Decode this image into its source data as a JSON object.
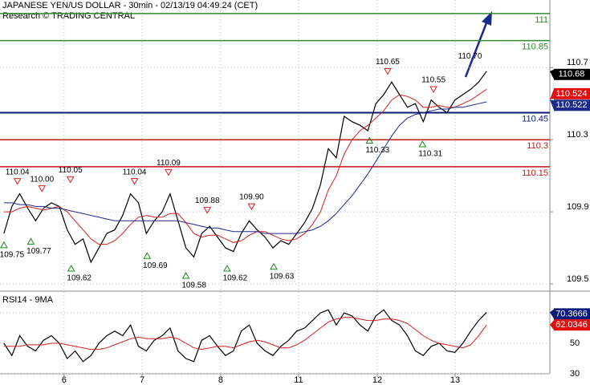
{
  "chart_data": [
    {
      "type": "line",
      "title": "JAPANESE YEN/US DOLLAR - 30min - 02/13/19 04:49:24 (CET)",
      "subtitle": "Research © TRADING CENTRAL",
      "x": [
        0,
        1,
        2,
        3,
        4,
        5,
        6,
        7,
        8,
        9,
        10,
        11,
        12,
        13,
        14,
        15,
        16,
        17,
        18,
        19,
        20,
        21,
        22,
        23,
        24,
        25,
        26,
        27,
        28,
        29,
        30,
        31,
        32,
        33,
        34,
        35,
        36,
        37,
        38,
        39,
        40,
        41,
        42,
        43,
        44,
        45,
        46,
        47,
        48,
        49,
        50,
        51,
        52,
        53,
        54,
        55,
        56,
        57,
        58,
        59,
        60,
        61
      ],
      "xlim": [
        -0.5,
        69
      ],
      "ylim": [
        109.46,
        111.075
      ],
      "yticks": [
        109.5,
        109.9,
        110.3,
        110.7
      ],
      "series": [
        {
          "color": "#000000",
          "values": [
            109.78,
            109.93,
            110.0,
            109.92,
            109.85,
            109.92,
            109.95,
            109.93,
            109.8,
            109.72,
            109.75,
            109.62,
            109.7,
            109.78,
            109.8,
            109.88,
            110.0,
            109.95,
            109.78,
            109.85,
            109.9,
            110.0,
            109.85,
            109.7,
            109.65,
            109.78,
            109.82,
            109.76,
            109.7,
            109.68,
            109.78,
            109.85,
            109.8,
            109.76,
            109.7,
            109.74,
            109.72,
            109.78,
            109.84,
            109.92,
            110.05,
            110.25,
            110.2,
            110.43,
            110.4,
            110.38,
            110.35,
            110.5,
            110.55,
            110.62,
            110.55,
            110.48,
            110.5,
            110.4,
            110.52,
            110.48,
            110.45,
            110.52,
            110.55,
            110.58,
            110.62,
            110.68
          ]
        },
        {
          "color": "#d42020",
          "values": [
            109.9,
            109.9,
            109.92,
            109.93,
            109.92,
            109.91,
            109.92,
            109.93,
            109.9,
            109.85,
            109.8,
            109.75,
            109.72,
            109.72,
            109.74,
            109.78,
            109.83,
            109.87,
            109.88,
            109.87,
            109.87,
            109.89,
            109.89,
            109.84,
            109.78,
            109.76,
            109.77,
            109.77,
            109.75,
            109.73,
            109.74,
            109.77,
            109.79,
            109.79,
            109.77,
            109.75,
            109.74,
            109.75,
            109.78,
            109.83,
            109.9,
            110.02,
            110.1,
            110.22,
            110.3,
            110.35,
            110.38,
            110.42,
            110.46,
            110.52,
            110.55,
            110.54,
            110.52,
            110.48,
            110.48,
            110.49,
            110.48,
            110.48,
            110.5,
            110.52,
            110.55,
            110.58
          ]
        },
        {
          "color": "#1c2a8c",
          "values": [
            109.95,
            109.95,
            109.94,
            109.94,
            109.93,
            109.93,
            109.92,
            109.92,
            109.91,
            109.9,
            109.89,
            109.88,
            109.87,
            109.86,
            109.85,
            109.85,
            109.85,
            109.85,
            109.85,
            109.85,
            109.85,
            109.85,
            109.85,
            109.84,
            109.83,
            109.82,
            109.81,
            109.81,
            109.8,
            109.79,
            109.79,
            109.79,
            109.79,
            109.78,
            109.78,
            109.78,
            109.78,
            109.78,
            109.79,
            109.8,
            109.82,
            109.85,
            109.89,
            109.94,
            109.99,
            110.05,
            110.11,
            110.18,
            110.25,
            110.32,
            110.38,
            110.42,
            110.44,
            110.45,
            110.46,
            110.47,
            110.47,
            110.48,
            110.48,
            110.49,
            110.5,
            110.51
          ]
        }
      ],
      "levels": [
        {
          "value": 111,
          "color": "#2e8b2e"
        },
        {
          "value": 110.85,
          "color": "#2e8b2e"
        },
        {
          "value": 110.45,
          "color": "#0a1a7a"
        },
        {
          "value": 110.3,
          "color": "#c01818"
        },
        {
          "value": 110.15,
          "color": "#c01818"
        }
      ],
      "highs": [
        {
          "x": 1.7,
          "value": 110.04,
          "label": "110.04"
        },
        {
          "x": 4.8,
          "value": 110.0,
          "label": "110.00"
        },
        {
          "x": 8.4,
          "value": 110.05,
          "label": "110.05"
        },
        {
          "x": 16.5,
          "value": 110.04,
          "label": "110.04"
        },
        {
          "x": 20.8,
          "value": 110.09,
          "label": "110.09"
        },
        {
          "x": 25.7,
          "value": 109.88,
          "label": "109.88"
        },
        {
          "x": 31.3,
          "value": 109.9,
          "label": "109.90"
        },
        {
          "x": 48.5,
          "value": 110.65,
          "label": "110.65"
        },
        {
          "x": 54.3,
          "value": 110.55,
          "label": "110.55"
        }
      ],
      "notes": [
        {
          "x": 58.9,
          "value": 110.7,
          "label": "110.70"
        }
      ],
      "lows": [
        {
          "x": 0,
          "value": 109.75,
          "label": "109.75"
        },
        {
          "x": 3.4,
          "value": 109.77,
          "label": "109.77"
        },
        {
          "x": 8.5,
          "value": 109.62,
          "label": "109.62"
        },
        {
          "x": 18.1,
          "value": 109.69,
          "label": "109.69"
        },
        {
          "x": 23.0,
          "value": 109.58,
          "label": "109.58"
        },
        {
          "x": 28.2,
          "value": 109.62,
          "label": "109.62"
        },
        {
          "x": 34.1,
          "value": 109.63,
          "label": "109.63"
        },
        {
          "x": 46.2,
          "value": 110.33,
          "label": "110.33"
        },
        {
          "x": 52.9,
          "value": 110.31,
          "label": "110.31"
        }
      ],
      "last_price": 110.68,
      "ma_labels": [
        {
          "value": 110.524,
          "color": "#e01010"
        },
        {
          "value": 110.522,
          "color": "#1c2a8c"
        }
      ]
    },
    {
      "type": "line",
      "title": "RSI14 - 9MA",
      "x": [
        0,
        1,
        2,
        3,
        4,
        5,
        6,
        7,
        8,
        9,
        10,
        11,
        12,
        13,
        14,
        15,
        16,
        17,
        18,
        19,
        20,
        21,
        22,
        23,
        24,
        25,
        26,
        27,
        28,
        29,
        30,
        31,
        32,
        33,
        34,
        35,
        36,
        37,
        38,
        39,
        40,
        41,
        42,
        43,
        44,
        45,
        46,
        47,
        48,
        49,
        50,
        51,
        52,
        53,
        54,
        55,
        56,
        57,
        58,
        59,
        60,
        61
      ],
      "xlim": [
        -0.5,
        69
      ],
      "xticks": [
        {
          "value": 7.6,
          "label": "6"
        },
        {
          "value": 17.46,
          "label": "7"
        },
        {
          "value": 27.4,
          "label": "8"
        },
        {
          "value": 37.24,
          "label": "11"
        },
        {
          "value": 47.19,
          "label": "12"
        },
        {
          "value": 57.03,
          "label": "13"
        }
      ],
      "ylim": [
        30,
        83.2
      ],
      "yticks": [
        30,
        50,
        70
      ],
      "series": [
        {
          "color": "#000000",
          "values": [
            50,
            42,
            55,
            48,
            45,
            52,
            55,
            50,
            40,
            45,
            38,
            42,
            50,
            55,
            58,
            55,
            62,
            48,
            45,
            52,
            55,
            60,
            45,
            40,
            38,
            52,
            55,
            48,
            42,
            45,
            58,
            62,
            50,
            45,
            42,
            48,
            52,
            58,
            60,
            65,
            70,
            72,
            62,
            70,
            68,
            62,
            58,
            68,
            72,
            65,
            62,
            55,
            45,
            42,
            48,
            50,
            45,
            44,
            50,
            58,
            65,
            70.37
          ]
        },
        {
          "color": "#d42020",
          "values": [
            48,
            48,
            48,
            49,
            49,
            49,
            50,
            50,
            49,
            48,
            47,
            46,
            46,
            47,
            49,
            51,
            53,
            54,
            53,
            53,
            53,
            54,
            53,
            50,
            47,
            46,
            47,
            48,
            48,
            47,
            49,
            51,
            52,
            51,
            49,
            47,
            47,
            49,
            52,
            56,
            60,
            64,
            66,
            67,
            67,
            66,
            65,
            65,
            66,
            66,
            65,
            63,
            59,
            55,
            52,
            50,
            49,
            48,
            47,
            49,
            55,
            62.03
          ]
        }
      ],
      "last_labels": [
        {
          "value": 70.3666,
          "color": "#0a1a7a"
        },
        {
          "value": 62.0346,
          "color": "#e01010"
        }
      ]
    }
  ]
}
